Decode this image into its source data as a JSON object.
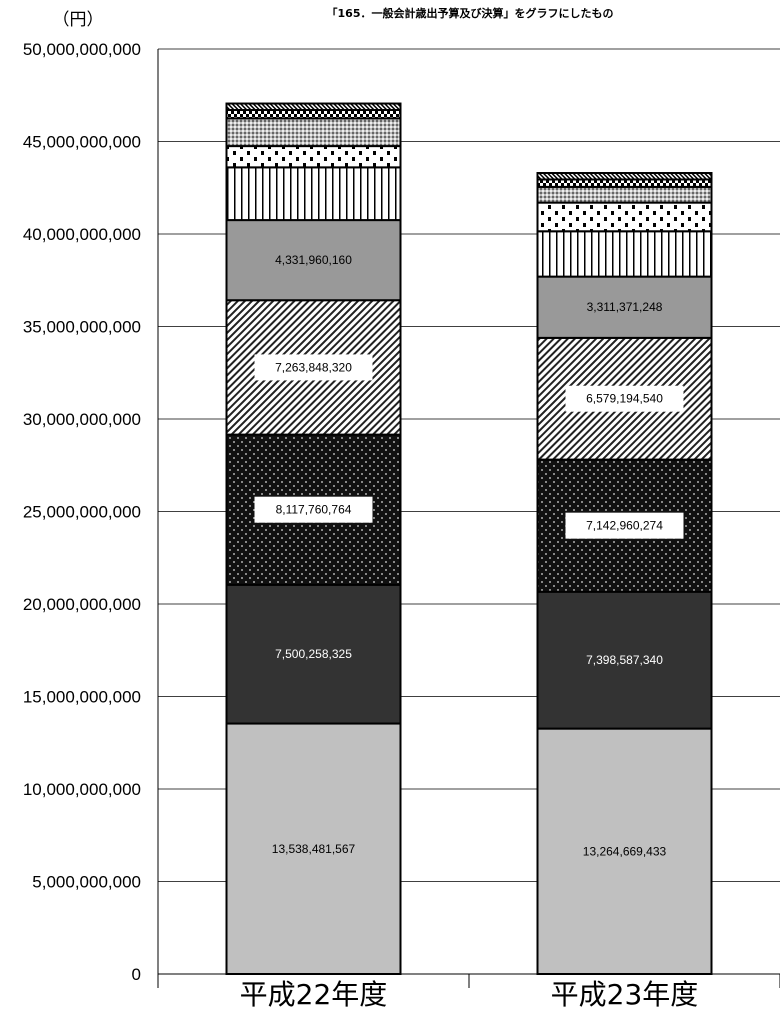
{
  "chart_data": {
    "type": "bar",
    "stacked": true,
    "title": "「165．一般会計歳出予算及び決算」をグラフにしたもの",
    "ylabel": "（円）",
    "xlabel": "",
    "ylim": [
      0,
      50000000000
    ],
    "yticks": [
      "0",
      "5,000,000,000",
      "10,000,000,000",
      "15,000,000,000",
      "20,000,000,000",
      "25,000,000,000",
      "30,000,000,000",
      "35,000,000,000",
      "40,000,000,000",
      "45,000,000,000",
      "50,000,000,000"
    ],
    "categories": [
      "平成22年度",
      "平成23年度"
    ],
    "grid": true,
    "legend": "none",
    "series": [
      {
        "values": [
          13538481567,
          13264669433
        ],
        "labels": [
          "13,538,481,567",
          "13,264,669,433"
        ],
        "fill": "#c0c0c0",
        "pattern": "solid",
        "label_style": "plain"
      },
      {
        "values": [
          7500258325,
          7398587340
        ],
        "labels": [
          "7,500,258,325",
          "7,398,587,340"
        ],
        "fill": "#333333",
        "pattern": "solid",
        "label_style": "plain-white"
      },
      {
        "values": [
          8117760764,
          7142960274
        ],
        "labels": [
          "8,117,760,764",
          "7,142,960,274"
        ],
        "fill": "#111111",
        "pattern": "dots",
        "label_style": "boxed"
      },
      {
        "values": [
          7263848320,
          6579194540
        ],
        "labels": [
          "7,263,848,320",
          "6,579,194,540"
        ],
        "fill": "#ffffff",
        "pattern": "diagonal",
        "label_style": "boxed"
      },
      {
        "values": [
          4331960160,
          3311371248
        ],
        "labels": [
          "4,331,960,160",
          "3,311,371,248"
        ],
        "fill": "#999999",
        "pattern": "solid",
        "label_style": "plain"
      },
      {
        "values": [
          2850000000,
          2450000000
        ],
        "fill": "#ffffff",
        "pattern": "vertical"
      },
      {
        "values": [
          1150000000,
          1550000000
        ],
        "fill": "#ffffff",
        "pattern": "dashes"
      },
      {
        "values": [
          1500000000,
          850000000
        ],
        "fill": "#c8c8c8",
        "pattern": "crosshatch"
      },
      {
        "values": [
          450000000,
          400000000
        ],
        "fill": "#ffffff",
        "pattern": "checker"
      },
      {
        "values": [
          350000000,
          350000000
        ],
        "fill": "#ffffff",
        "pattern": "diagonal-tight"
      }
    ]
  }
}
